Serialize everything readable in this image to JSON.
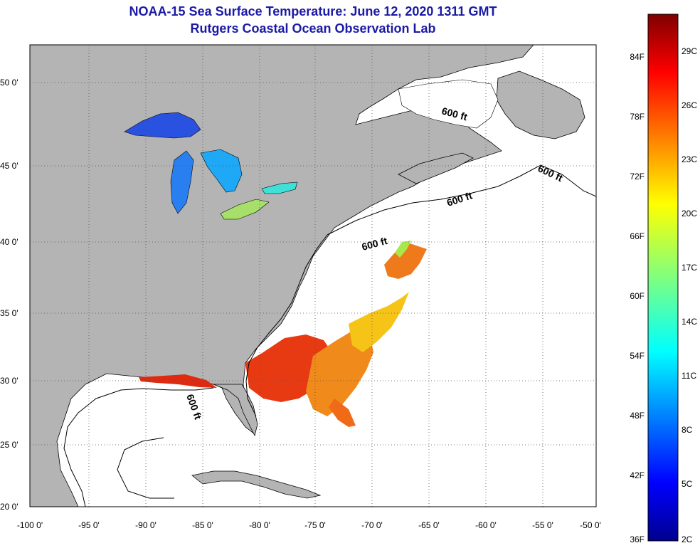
{
  "title": {
    "line1": "NOAA-15 Sea Surface Temperature:  June 12, 2020 1311 GMT",
    "line2": "Rutgers Coastal Ocean Observation Lab"
  },
  "map": {
    "latitude_labels": [
      "50 0'",
      "45 0'",
      "40 0'",
      "35 0'",
      "30 0'",
      "25 0'",
      "20 0'"
    ],
    "longitude_labels": [
      "-100 0'",
      "-95 0'",
      "-90 0'",
      "-85 0'",
      "-80 0'",
      "-75 0'",
      "-70 0'",
      "-65 0'",
      "-60 0'",
      "-55 0'",
      "-50 0'"
    ],
    "contour_labels": [
      "600 ft",
      "600 ft",
      "600 ft",
      "600 ft",
      "600 ft"
    ]
  },
  "colorbar": {
    "fahrenheit_labels": [
      "84F",
      "78F",
      "72F",
      "66F",
      "60F",
      "54F",
      "48F",
      "42F",
      "36F"
    ],
    "celsius_labels": [
      "29C",
      "26C",
      "23C",
      "20C",
      "17C",
      "14C",
      "11C",
      "8C",
      "5C",
      "2C"
    ]
  },
  "colors": {
    "title": "#1a1aa6",
    "land": "#b4b4b4",
    "ocean": "#ffffff",
    "grid": "#555555"
  }
}
